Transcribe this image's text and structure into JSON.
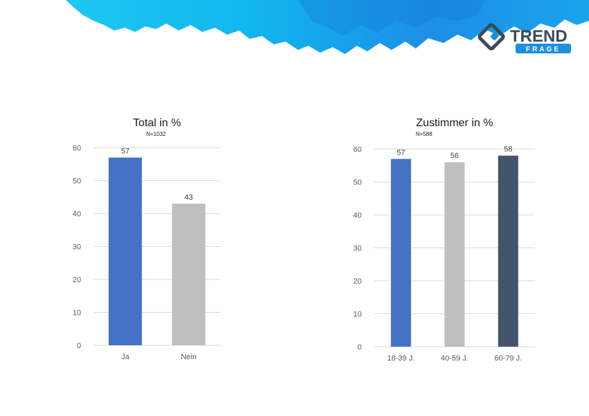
{
  "brand": {
    "logo_line1": "TREND",
    "logo_line2": "FRAGE",
    "accent": "#1e8fe0",
    "logo_dark": "#3a4a5c"
  },
  "chart_data": [
    {
      "type": "bar",
      "title": "Total in %",
      "subtitle": "N=1032",
      "categories": [
        "Ja",
        "Nein"
      ],
      "values": [
        57,
        43
      ],
      "colors": [
        "#4472c4",
        "#bfbfbf"
      ],
      "yticks": [
        "0",
        "10",
        "20",
        "30",
        "40",
        "50",
        "60"
      ],
      "ylim": [
        0,
        60
      ],
      "grid": true,
      "xlabel": "",
      "ylabel": ""
    },
    {
      "type": "bar",
      "title": "Zustimmer in %",
      "subtitle": "N=588",
      "categories": [
        "18-39 J.",
        "40-59 J.",
        "60-79 J."
      ],
      "values": [
        57,
        56,
        58
      ],
      "colors": [
        "#4472c4",
        "#bfbfbf",
        "#44546a"
      ],
      "yticks": [
        "0",
        "10",
        "20",
        "30",
        "40",
        "50",
        "60"
      ],
      "ylim": [
        0,
        60
      ],
      "grid": true,
      "xlabel": "",
      "ylabel": ""
    }
  ]
}
